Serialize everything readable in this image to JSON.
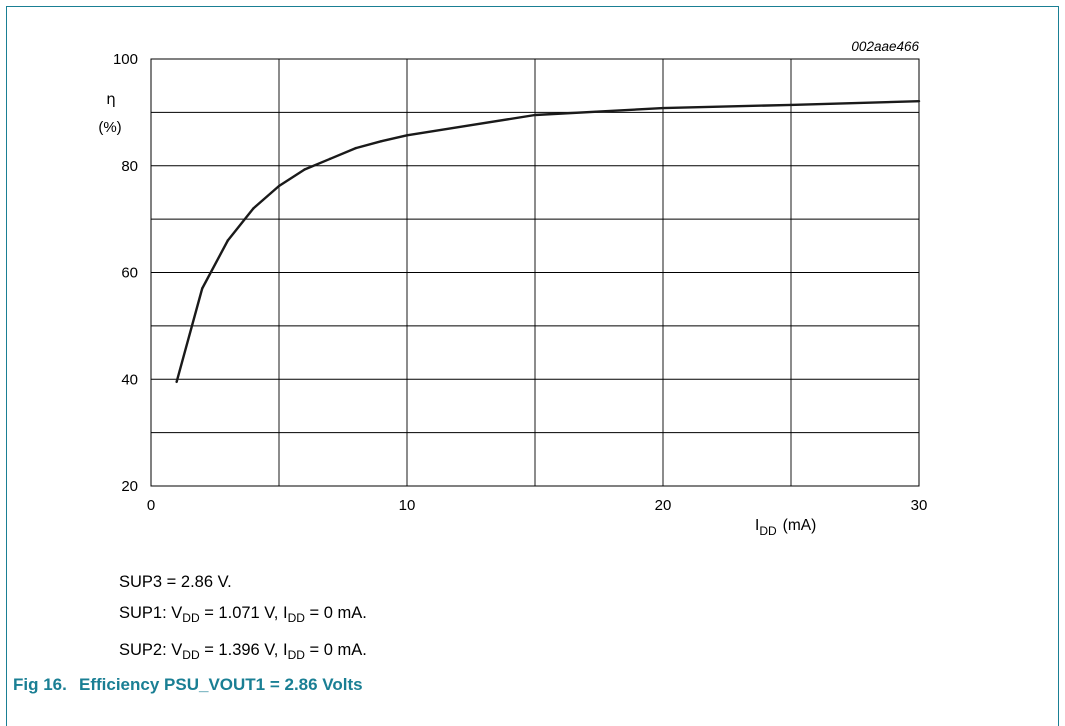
{
  "chart_data": {
    "type": "line",
    "code": "002aae466",
    "ylabel_symbol": "η",
    "ylabel_unit": "(%)",
    "xlabel_symbol": "I",
    "xlabel_sub": "DD",
    "xlabel_unit": "(mA)",
    "xlim": [
      0,
      30
    ],
    "ylim": [
      20,
      100
    ],
    "xticks": [
      0,
      10,
      20,
      30
    ],
    "yticks": [
      20,
      40,
      60,
      80,
      100
    ],
    "grid": true,
    "series": [
      {
        "x": [
          1,
          2,
          3,
          4,
          5,
          6,
          7,
          8,
          9,
          10,
          15,
          20,
          25,
          30
        ],
        "values": [
          39.5,
          57,
          66,
          72,
          76.2,
          79.3,
          81.3,
          83.3,
          84.6,
          85.7,
          89.5,
          90.8,
          91.4,
          92.1
        ]
      }
    ]
  },
  "notes": {
    "sup3": "SUP3 = 2.86 V.",
    "sup1_prefix": "SUP1: V",
    "sup1_sub": "DD",
    "sup1_mid": " = 1.071 V, I",
    "sup1_sub2": "DD",
    "sup1_suffix": " = 0 mA.",
    "sup2_prefix": "SUP2: V",
    "sup2_sub": "DD",
    "sup2_mid": " = 1.396 V, I",
    "sup2_sub2": "DD",
    "sup2_suffix": " = 0 mA."
  },
  "caption": {
    "number": "Fig 16.",
    "title": "Efficiency PSU_VOUT1 = 2.86 Volts"
  },
  "colors": {
    "accent": "#1a7f94",
    "line": "#1a1a1a",
    "grid": "#000000"
  }
}
